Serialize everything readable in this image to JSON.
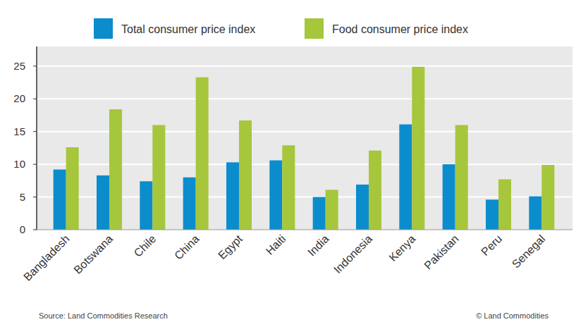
{
  "chart_data": {
    "type": "bar",
    "categories": [
      "Bangladesh",
      "Botswana",
      "Chile",
      "China",
      "Egypt",
      "Haiti",
      "India",
      "Indonesia",
      "Kenya",
      "Pakistan",
      "Peru",
      "Senegal"
    ],
    "series": [
      {
        "name": "Total consumer price index",
        "color": "#0b8dcd",
        "values": [
          9.2,
          8.3,
          7.4,
          8.0,
          10.3,
          10.6,
          5.0,
          6.9,
          16.1,
          10.0,
          4.6,
          5.1
        ]
      },
      {
        "name": "Food consumer price index",
        "color": "#a6c63c",
        "values": [
          12.6,
          18.4,
          16.0,
          23.3,
          16.7,
          12.9,
          6.1,
          12.1,
          24.9,
          16.0,
          7.7,
          9.9
        ]
      }
    ],
    "ylim": [
      0,
      28
    ],
    "yticks": [
      0,
      5,
      10,
      15,
      20,
      25
    ],
    "grid": true,
    "legend": "top",
    "annotations": [
      "Source: Land Commodities Research",
      "© Land Commodities"
    ]
  }
}
